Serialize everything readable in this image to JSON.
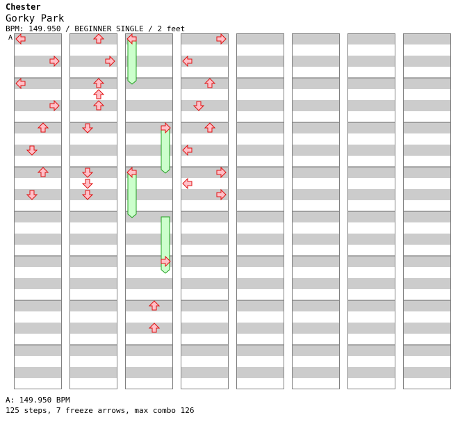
{
  "song": {
    "artist": "Chester",
    "title": "Gorky Park",
    "info": "BPM: 149.950 / BEGINNER SINGLE / 2 feet",
    "bpm_marker_label": "A",
    "footer_bpm": "A: 149.950 BPM",
    "footer_stats": "125 steps, 7 freeze arrows, max combo 126"
  },
  "colors": {
    "stripe": "#cccccc",
    "arrow_fill": "#ffc0c8",
    "arrow_stroke": "#e01010",
    "freeze_fill": "#ccffcc",
    "freeze_stroke": "#20a020",
    "border": "#808080"
  },
  "notes": [
    [
      0,
      0,
      "L"
    ],
    [
      0,
      2,
      "R"
    ],
    [
      0,
      4,
      "L"
    ],
    [
      0,
      6,
      "R"
    ],
    [
      0,
      8,
      "U"
    ],
    [
      0,
      10,
      "D"
    ],
    [
      0,
      12,
      "U"
    ],
    [
      0,
      14,
      "D"
    ],
    [
      1,
      0,
      "U"
    ],
    [
      1,
      2,
      "R"
    ],
    [
      1,
      4,
      "U"
    ],
    [
      1,
      5,
      "U"
    ],
    [
      1,
      6,
      "U"
    ],
    [
      1,
      8,
      "D"
    ],
    [
      1,
      12,
      "D"
    ],
    [
      1,
      13,
      "D"
    ],
    [
      1,
      14,
      "D"
    ],
    [
      2,
      0,
      "L"
    ],
    [
      2,
      8,
      "R"
    ],
    [
      2,
      12,
      "L"
    ],
    [
      2,
      20,
      "R"
    ],
    [
      2,
      24,
      "U"
    ],
    [
      2,
      26,
      "U"
    ],
    [
      3,
      0,
      "R"
    ],
    [
      3,
      2,
      "L"
    ],
    [
      3,
      4,
      "U"
    ],
    [
      3,
      6,
      "D"
    ],
    [
      3,
      8,
      "U"
    ],
    [
      3,
      10,
      "L"
    ],
    [
      3,
      12,
      "R"
    ],
    [
      3,
      13,
      "L"
    ],
    [
      3,
      14,
      "R"
    ]
  ],
  "freezes": [
    [
      2,
      0,
      4,
      "L"
    ],
    [
      2,
      8,
      12,
      "R"
    ],
    [
      2,
      12,
      16,
      "L"
    ],
    [
      2,
      16,
      21,
      "R"
    ]
  ]
}
